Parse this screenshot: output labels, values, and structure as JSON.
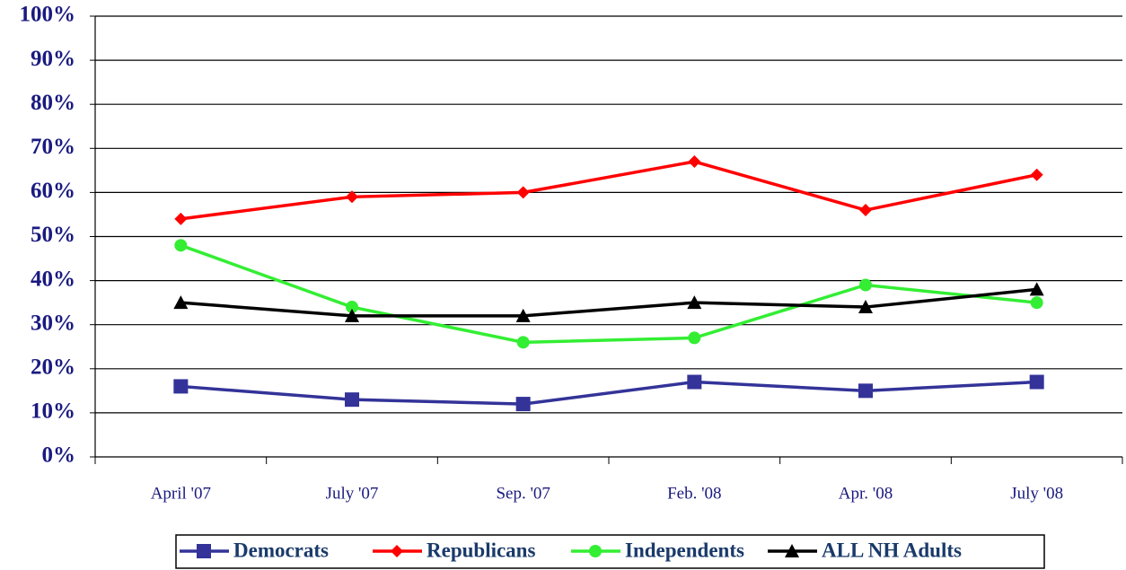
{
  "chart_data": {
    "type": "line",
    "categories": [
      "April '07",
      "July '07",
      "Sep. '07",
      "Feb. '08",
      "Apr. '08",
      "July '08"
    ],
    "series": [
      {
        "name": "Democrats",
        "color": "#333399",
        "marker": "square",
        "values": [
          16,
          13,
          12,
          17,
          15,
          17
        ]
      },
      {
        "name": "Republicans",
        "color": "#ff0000",
        "marker": "diamond",
        "values": [
          54,
          59,
          60,
          67,
          56,
          64
        ]
      },
      {
        "name": "Independents",
        "color": "#33ee33",
        "marker": "circle",
        "values": [
          48,
          34,
          26,
          27,
          39,
          35
        ]
      },
      {
        "name": "ALL NH Adults",
        "color": "#000000",
        "marker": "triangle",
        "values": [
          35,
          32,
          32,
          35,
          34,
          38
        ]
      }
    ],
    "ylim": [
      0,
      100
    ],
    "yticks": [
      {
        "value": 0,
        "label": "0%"
      },
      {
        "value": 10,
        "label": "10%"
      },
      {
        "value": 20,
        "label": "20%"
      },
      {
        "value": 30,
        "label": "30%"
      },
      {
        "value": 40,
        "label": "40%"
      },
      {
        "value": 50,
        "label": "50%"
      },
      {
        "value": 60,
        "label": "60%"
      },
      {
        "value": 70,
        "label": "70%"
      },
      {
        "value": 80,
        "label": "80%"
      },
      {
        "value": 90,
        "label": "90%"
      },
      {
        "value": 100,
        "label": "100%"
      }
    ],
    "grid": true,
    "legend": "bottom"
  }
}
